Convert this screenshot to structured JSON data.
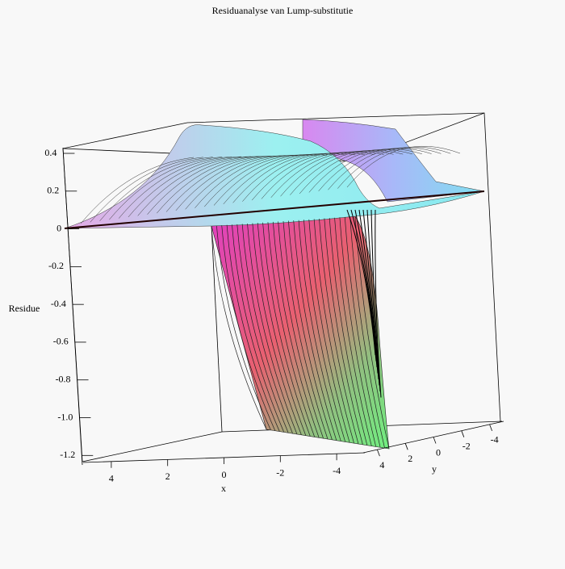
{
  "chart_data": {
    "type": "surface3d",
    "title": "Residuanalyse van Lump-substitutie",
    "xlabel": "x",
    "ylabel": "y",
    "zlabel": "Residue",
    "xlim": [
      5,
      -5
    ],
    "xticks": [
      4,
      2,
      0,
      -2,
      -4
    ],
    "ylim": [
      5,
      -5
    ],
    "yticks": [
      4,
      2,
      0,
      -2,
      -4
    ],
    "zlim": [
      -1.25,
      0.43
    ],
    "zticks": [
      0.4,
      0.2,
      0,
      -0.2,
      -0.4,
      -0.6,
      -0.8,
      {
        "value": -1,
        "label": "-1.0"
      },
      -1.2
    ]
  }
}
